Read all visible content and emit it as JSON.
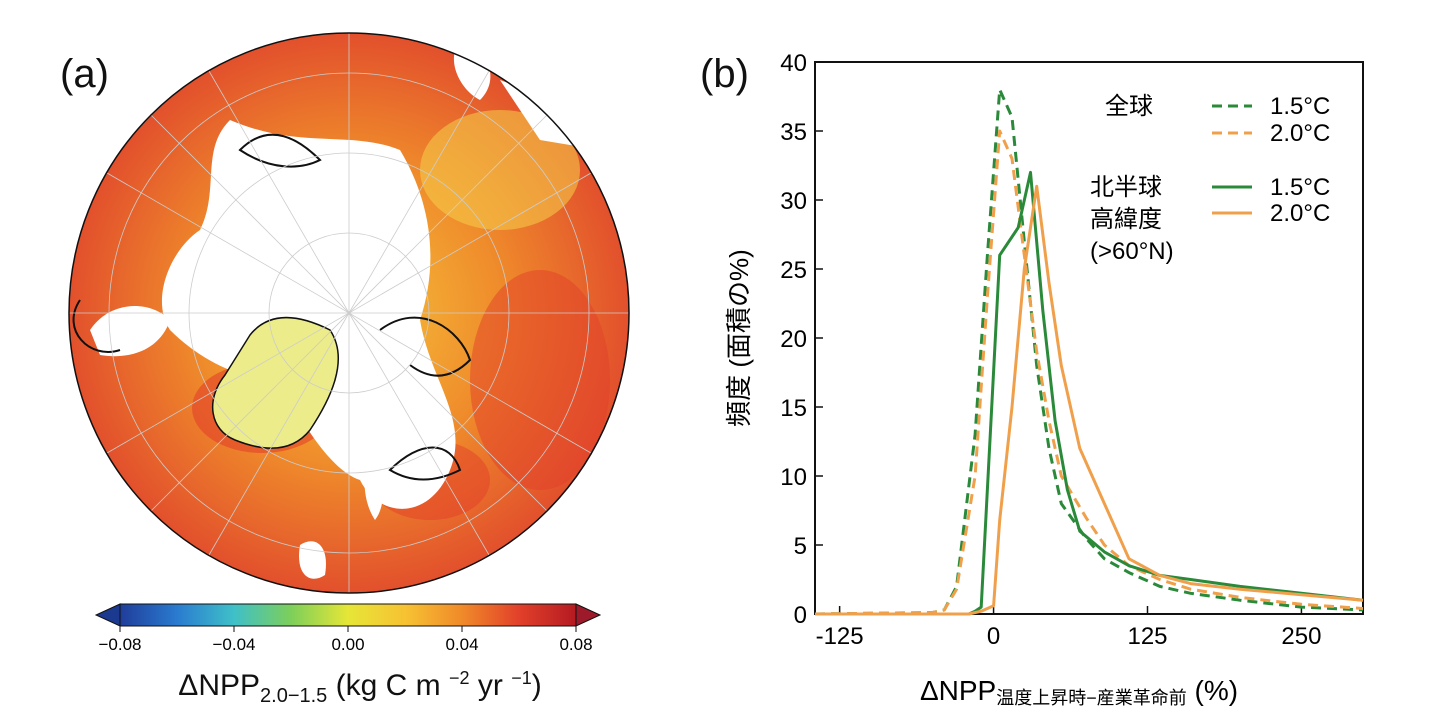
{
  "panel_a": {
    "label": "(a)",
    "colorbar": {
      "ticks": [
        "−0.08",
        "−0.04",
        "0.00",
        "0.04",
        "0.08"
      ],
      "tick_values": [
        -0.08,
        -0.04,
        0.0,
        0.04,
        0.08
      ],
      "colors": [
        "#1f3d9a",
        "#2a7bd0",
        "#3fc0c8",
        "#7dcf5a",
        "#e6e637",
        "#f7c233",
        "#f08a2a",
        "#e2402a",
        "#b51a22"
      ],
      "extend_low_color": "#1b3a8f",
      "extend_high_color": "#9c1a2a"
    },
    "caption": {
      "main": "ΔNPP",
      "sub": "2.0−1.5",
      "units_pre": " (kg C m ",
      "units_exp1": "−2",
      "units_mid": " yr ",
      "units_exp2": "−1",
      "units_post": ")"
    }
  },
  "panel_b": {
    "label": "(b)",
    "legend": {
      "global_label": "全球",
      "nh_label_lines": [
        "北半球",
        "高緯度",
        "(>60°N)"
      ],
      "entries": [
        "1.5°C",
        "2.0°C",
        "1.5°C",
        "2.0°C"
      ]
    },
    "xlabel_main": "ΔNPP",
    "xlabel_sub": "温度上昇時−産業革命前",
    "xlabel_unit": " (%)",
    "ylabel": "頻度 (面積の%)"
  },
  "chart_data": {
    "type": "line",
    "xlim": [
      -145,
      300
    ],
    "ylim": [
      0,
      40
    ],
    "xticks": [
      -125,
      0,
      125,
      250
    ],
    "xtick_labels": [
      "-125",
      "0",
      "125",
      "250"
    ],
    "yticks": [
      0,
      5,
      10,
      15,
      20,
      25,
      30,
      35,
      40
    ],
    "series": [
      {
        "name": "全球 1.5°C",
        "color": "#2a8a3a",
        "dash": true,
        "x": [
          -145,
          -50,
          -40,
          -30,
          -15,
          -5,
          5,
          15,
          25,
          35,
          45,
          55,
          75,
          90,
          110,
          135,
          160,
          200,
          250,
          300
        ],
        "y": [
          0,
          0.1,
          0.3,
          2,
          13,
          26,
          38,
          36,
          27,
          18,
          12,
          8,
          5.5,
          4,
          3,
          2,
          1.5,
          1,
          0.5,
          0.3
        ]
      },
      {
        "name": "全球 2.0°C",
        "color": "#f0a04b",
        "dash": true,
        "x": [
          -145,
          -50,
          -40,
          -30,
          -15,
          -5,
          5,
          15,
          25,
          35,
          45,
          55,
          75,
          90,
          110,
          135,
          160,
          200,
          250,
          300
        ],
        "y": [
          0,
          0.1,
          0.3,
          1.8,
          10,
          23,
          35,
          33,
          26,
          19,
          14,
          10,
          7,
          5,
          3.5,
          2.5,
          1.8,
          1.2,
          0.7,
          0.4
        ]
      },
      {
        "name": "北半球 高緯度 1.5°C",
        "color": "#2a8a3a",
        "dash": false,
        "x": [
          -145,
          -20,
          -15,
          -10,
          5,
          20,
          30,
          40,
          50,
          60,
          70,
          90,
          110,
          135,
          160,
          200,
          250,
          300
        ],
        "y": [
          0,
          0,
          0.2,
          0.5,
          26,
          28,
          32,
          22,
          14,
          9,
          6,
          4.5,
          3.5,
          2.8,
          2.5,
          2,
          1.5,
          1
        ]
      },
      {
        "name": "北半球 高緯度 2.0°C",
        "color": "#f0a04b",
        "dash": false,
        "x": [
          -145,
          -20,
          -10,
          0,
          5,
          15,
          25,
          35,
          45,
          55,
          70,
          90,
          110,
          135,
          160,
          200,
          250,
          300
        ],
        "y": [
          0,
          0,
          0.2,
          0.6,
          6.8,
          15,
          25,
          31,
          24,
          18,
          12,
          8,
          4,
          2.8,
          2.2,
          1.8,
          1.4,
          1
        ]
      }
    ]
  }
}
